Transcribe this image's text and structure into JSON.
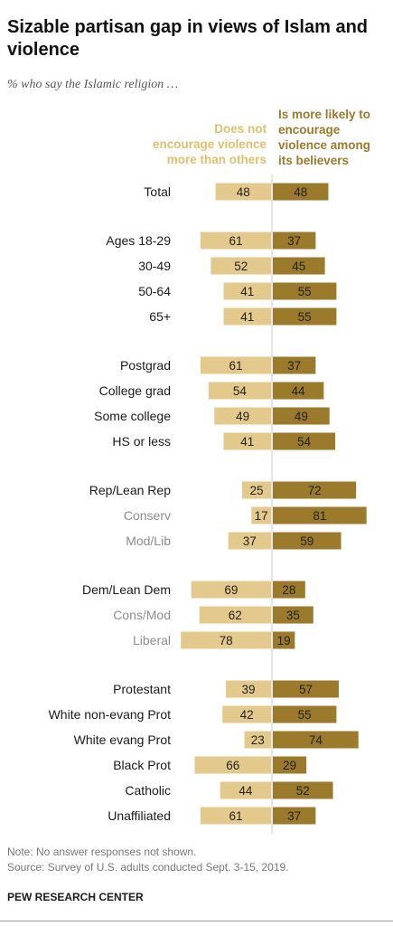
{
  "header": {
    "title": "Sizable partisan gap in views of Islam and violence",
    "subtitle": "% who say the Islamic religion …"
  },
  "colors": {
    "left_bar": "#e4c98c",
    "right_bar": "#9b7a2b",
    "left_legend_text": "#e0bf6a",
    "right_legend_text": "#9b7a2b",
    "label_primary": "#1a1a1a",
    "label_secondary": "#8c8c8c",
    "divider": "#cccccc"
  },
  "chart_data": {
    "type": "bar",
    "orientation": "horizontal-diverging",
    "series": [
      {
        "name": "Does not encourage violence more than others",
        "legend_lines": [
          "Does not",
          "encourage violence",
          "more than others"
        ]
      },
      {
        "name": "Is more likely to encourage violence among its believers",
        "legend_lines": [
          "Is more likely to",
          "encourage",
          "violence among",
          "its believers"
        ]
      }
    ],
    "groups": [
      {
        "rows": [
          {
            "label": "Total",
            "left": 48,
            "right": 48,
            "sub": false
          }
        ]
      },
      {
        "rows": [
          {
            "label": "Ages 18-29",
            "left": 61,
            "right": 37,
            "sub": false
          },
          {
            "label": "30-49",
            "left": 52,
            "right": 45,
            "sub": false
          },
          {
            "label": "50-64",
            "left": 41,
            "right": 55,
            "sub": false
          },
          {
            "label": "65+",
            "left": 41,
            "right": 55,
            "sub": false
          }
        ]
      },
      {
        "rows": [
          {
            "label": "Postgrad",
            "left": 61,
            "right": 37,
            "sub": false
          },
          {
            "label": "College grad",
            "left": 54,
            "right": 44,
            "sub": false
          },
          {
            "label": "Some college",
            "left": 49,
            "right": 49,
            "sub": false
          },
          {
            "label": "HS or less",
            "left": 41,
            "right": 54,
            "sub": false
          }
        ]
      },
      {
        "rows": [
          {
            "label": "Rep/Lean Rep",
            "left": 25,
            "right": 72,
            "sub": false
          },
          {
            "label": "Conserv",
            "left": 17,
            "right": 81,
            "sub": true
          },
          {
            "label": "Mod/Lib",
            "left": 37,
            "right": 59,
            "sub": true
          }
        ]
      },
      {
        "rows": [
          {
            "label": "Dem/Lean Dem",
            "left": 69,
            "right": 28,
            "sub": false
          },
          {
            "label": "Cons/Mod",
            "left": 62,
            "right": 35,
            "sub": true
          },
          {
            "label": "Liberal",
            "left": 78,
            "right": 19,
            "sub": true
          }
        ]
      },
      {
        "rows": [
          {
            "label": "Protestant",
            "left": 39,
            "right": 57,
            "sub": false
          },
          {
            "label": "White non-evang Prot",
            "left": 42,
            "right": 55,
            "sub": false
          },
          {
            "label": "White evang Prot",
            "left": 23,
            "right": 74,
            "sub": false
          },
          {
            "label": "Black Prot",
            "left": 66,
            "right": 29,
            "sub": false
          },
          {
            "label": "Catholic",
            "left": 44,
            "right": 52,
            "sub": false
          },
          {
            "label": "Unaffiliated",
            "left": 61,
            "right": 37,
            "sub": false
          }
        ]
      }
    ]
  },
  "footer": {
    "note": "Note: No answer responses not shown.",
    "source": "Source: Survey of U.S. adults conducted Sept. 3-15, 2019.",
    "brand": "PEW RESEARCH CENTER"
  }
}
